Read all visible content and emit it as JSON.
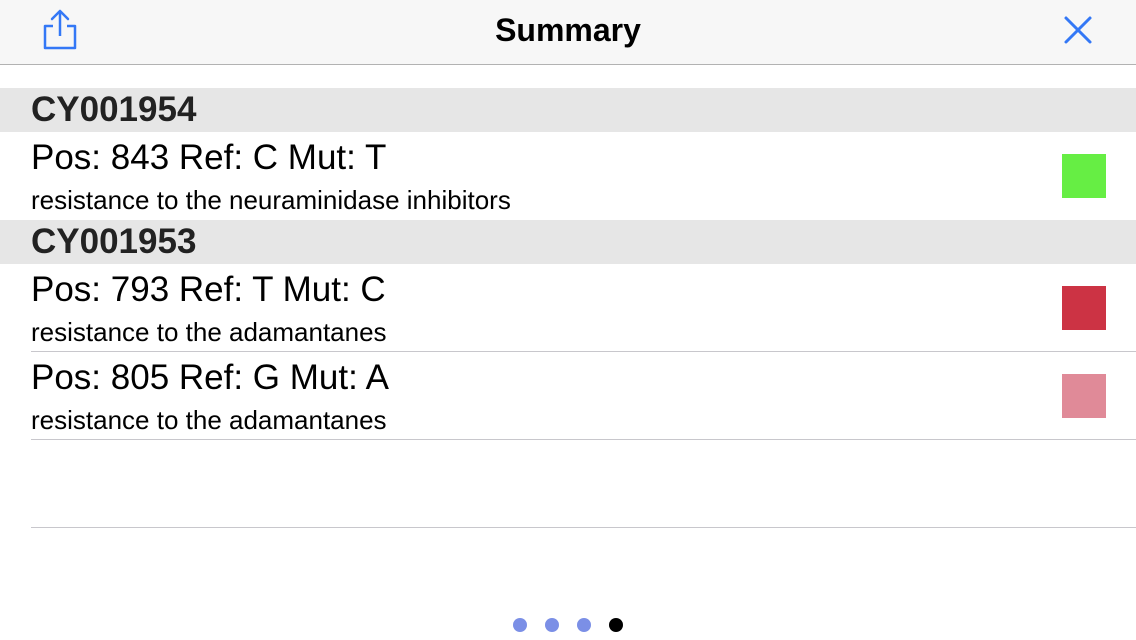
{
  "navbar": {
    "title": "Summary",
    "share_icon": "share-icon",
    "close_icon": "close-icon",
    "accent_color": "#3478f6"
  },
  "sections": [
    {
      "header": "CY001954",
      "rows": [
        {
          "title": "Pos: 843 Ref: C Mut: T",
          "subtitle": "resistance to the neuraminidase inhibitors",
          "color": "#66ee44"
        }
      ]
    },
    {
      "header": "CY001953",
      "rows": [
        {
          "title": "Pos: 793 Ref: T Mut: C",
          "subtitle": "resistance to the adamantanes",
          "color": "#cc3344"
        },
        {
          "title": "Pos: 805 Ref: G Mut: A",
          "subtitle": "resistance to the adamantanes",
          "color": "#e08a98"
        }
      ]
    }
  ],
  "page_control": {
    "count": 4,
    "current": 4,
    "dot_color": "#7b8fe6",
    "active_color": "#000000"
  }
}
